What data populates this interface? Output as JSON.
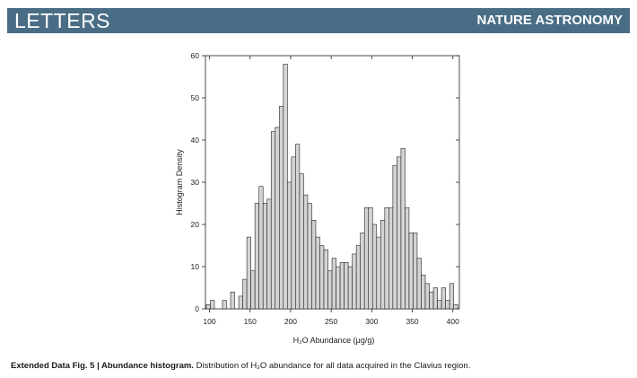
{
  "header": {
    "section": "LETTERS",
    "journal": "NATURE ASTRONOMY"
  },
  "colors": {
    "header_bar": "#4a6d86",
    "bar_fill": "#d4d4d4",
    "bar_stroke": "#222222"
  },
  "chart_data": {
    "type": "bar",
    "subtype": "histogram",
    "title": "",
    "xlabel": "H₂O Abundance (μg/g)",
    "ylabel": "Histogram Density",
    "xlim": [
      95,
      408
    ],
    "ylim": [
      0,
      60
    ],
    "xticks": [
      100,
      150,
      200,
      250,
      300,
      350,
      400
    ],
    "yticks": [
      0,
      10,
      20,
      30,
      40,
      50,
      60
    ],
    "bin_width": 5,
    "bin_starts": [
      96,
      101,
      106,
      111,
      116,
      121,
      126,
      131,
      136,
      141,
      146,
      151,
      156,
      161,
      166,
      171,
      176,
      181,
      186,
      191,
      196,
      201,
      206,
      211,
      216,
      221,
      226,
      231,
      236,
      241,
      246,
      251,
      256,
      261,
      266,
      271,
      276,
      281,
      286,
      291,
      296,
      301,
      306,
      311,
      316,
      321,
      326,
      331,
      336,
      341,
      346,
      351,
      356,
      361,
      366,
      371,
      376,
      381,
      386,
      391,
      396,
      401
    ],
    "values": [
      1,
      2,
      0,
      0,
      2,
      0,
      4,
      0,
      3,
      7,
      17,
      9,
      25,
      29,
      25,
      26,
      42,
      43,
      48,
      58,
      30,
      36,
      39,
      32,
      27,
      25,
      21,
      17,
      15,
      14,
      9,
      12,
      10,
      11,
      11,
      10,
      13,
      15,
      18,
      24,
      24,
      20,
      17,
      21,
      24,
      24,
      34,
      36,
      38,
      24,
      18,
      18,
      12,
      8,
      6,
      4,
      5,
      2,
      5,
      2,
      6,
      1
    ],
    "grid": false,
    "legend": "none"
  },
  "caption": {
    "lead": "Extended Data Fig. 5 | Abundance histogram.",
    "text": " Distribution of H₂O abundance for all data acquired in the Clavius region."
  }
}
